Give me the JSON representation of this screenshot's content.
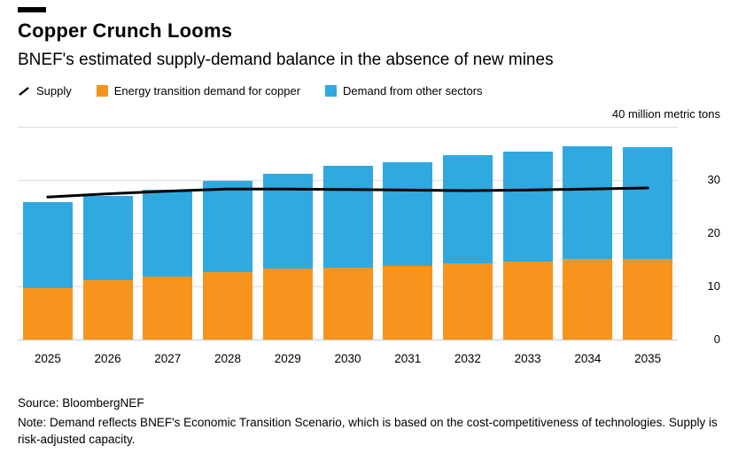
{
  "header": {
    "title": "Copper Crunch Looms",
    "subtitle": "BNEF's estimated supply-demand balance in the absence of new mines"
  },
  "legend": [
    {
      "label": "Supply",
      "glyph": "line",
      "color": "#000000"
    },
    {
      "label": "Energy transition demand for copper",
      "glyph": "square",
      "color": "#F7941D"
    },
    {
      "label": "Demand from other sectors",
      "glyph": "square",
      "color": "#2FA9E0"
    }
  ],
  "chart_data": {
    "type": "bar",
    "stacked": true,
    "title": "Copper Crunch Looms",
    "subtitle": "BNEF's estimated supply-demand balance in the absence of new mines",
    "unit_label": "40 million metric tons",
    "categories": [
      "2025",
      "2026",
      "2027",
      "2028",
      "2029",
      "2030",
      "2031",
      "2032",
      "2033",
      "2034",
      "2035"
    ],
    "series": [
      {
        "name": "Energy transition demand for copper",
        "type": "bar",
        "color": "#F7941D",
        "values": [
          9.7,
          11.2,
          11.8,
          12.6,
          13.3,
          13.5,
          13.8,
          14.3,
          14.7,
          15.2,
          15.2
        ]
      },
      {
        "name": "Demand from other sectors",
        "type": "bar",
        "color": "#2FA9E0",
        "values": [
          16.1,
          15.8,
          16.4,
          17.3,
          17.9,
          19.1,
          19.6,
          20.4,
          20.7,
          21.2,
          20.9
        ]
      },
      {
        "name": "Supply",
        "type": "line",
        "color": "#000000",
        "values": [
          26.8,
          27.4,
          27.9,
          28.3,
          28.3,
          28.2,
          28.1,
          28.0,
          28.1,
          28.3,
          28.5
        ]
      }
    ],
    "ylim": [
      0,
      40
    ],
    "yticks": [
      0,
      10,
      20,
      30
    ],
    "gridlines": [
      0,
      10,
      20,
      30,
      40
    ],
    "grid": true,
    "legend_position": "top",
    "ylabel": "million metric tons",
    "xlabel": ""
  },
  "footer": {
    "source": "Source: BloombergNEF",
    "note": "Note: Demand reflects BNEF's Economic Transition Scenario, which is based on the cost-competitiveness of technologies. Supply is risk-adjusted capacity."
  }
}
